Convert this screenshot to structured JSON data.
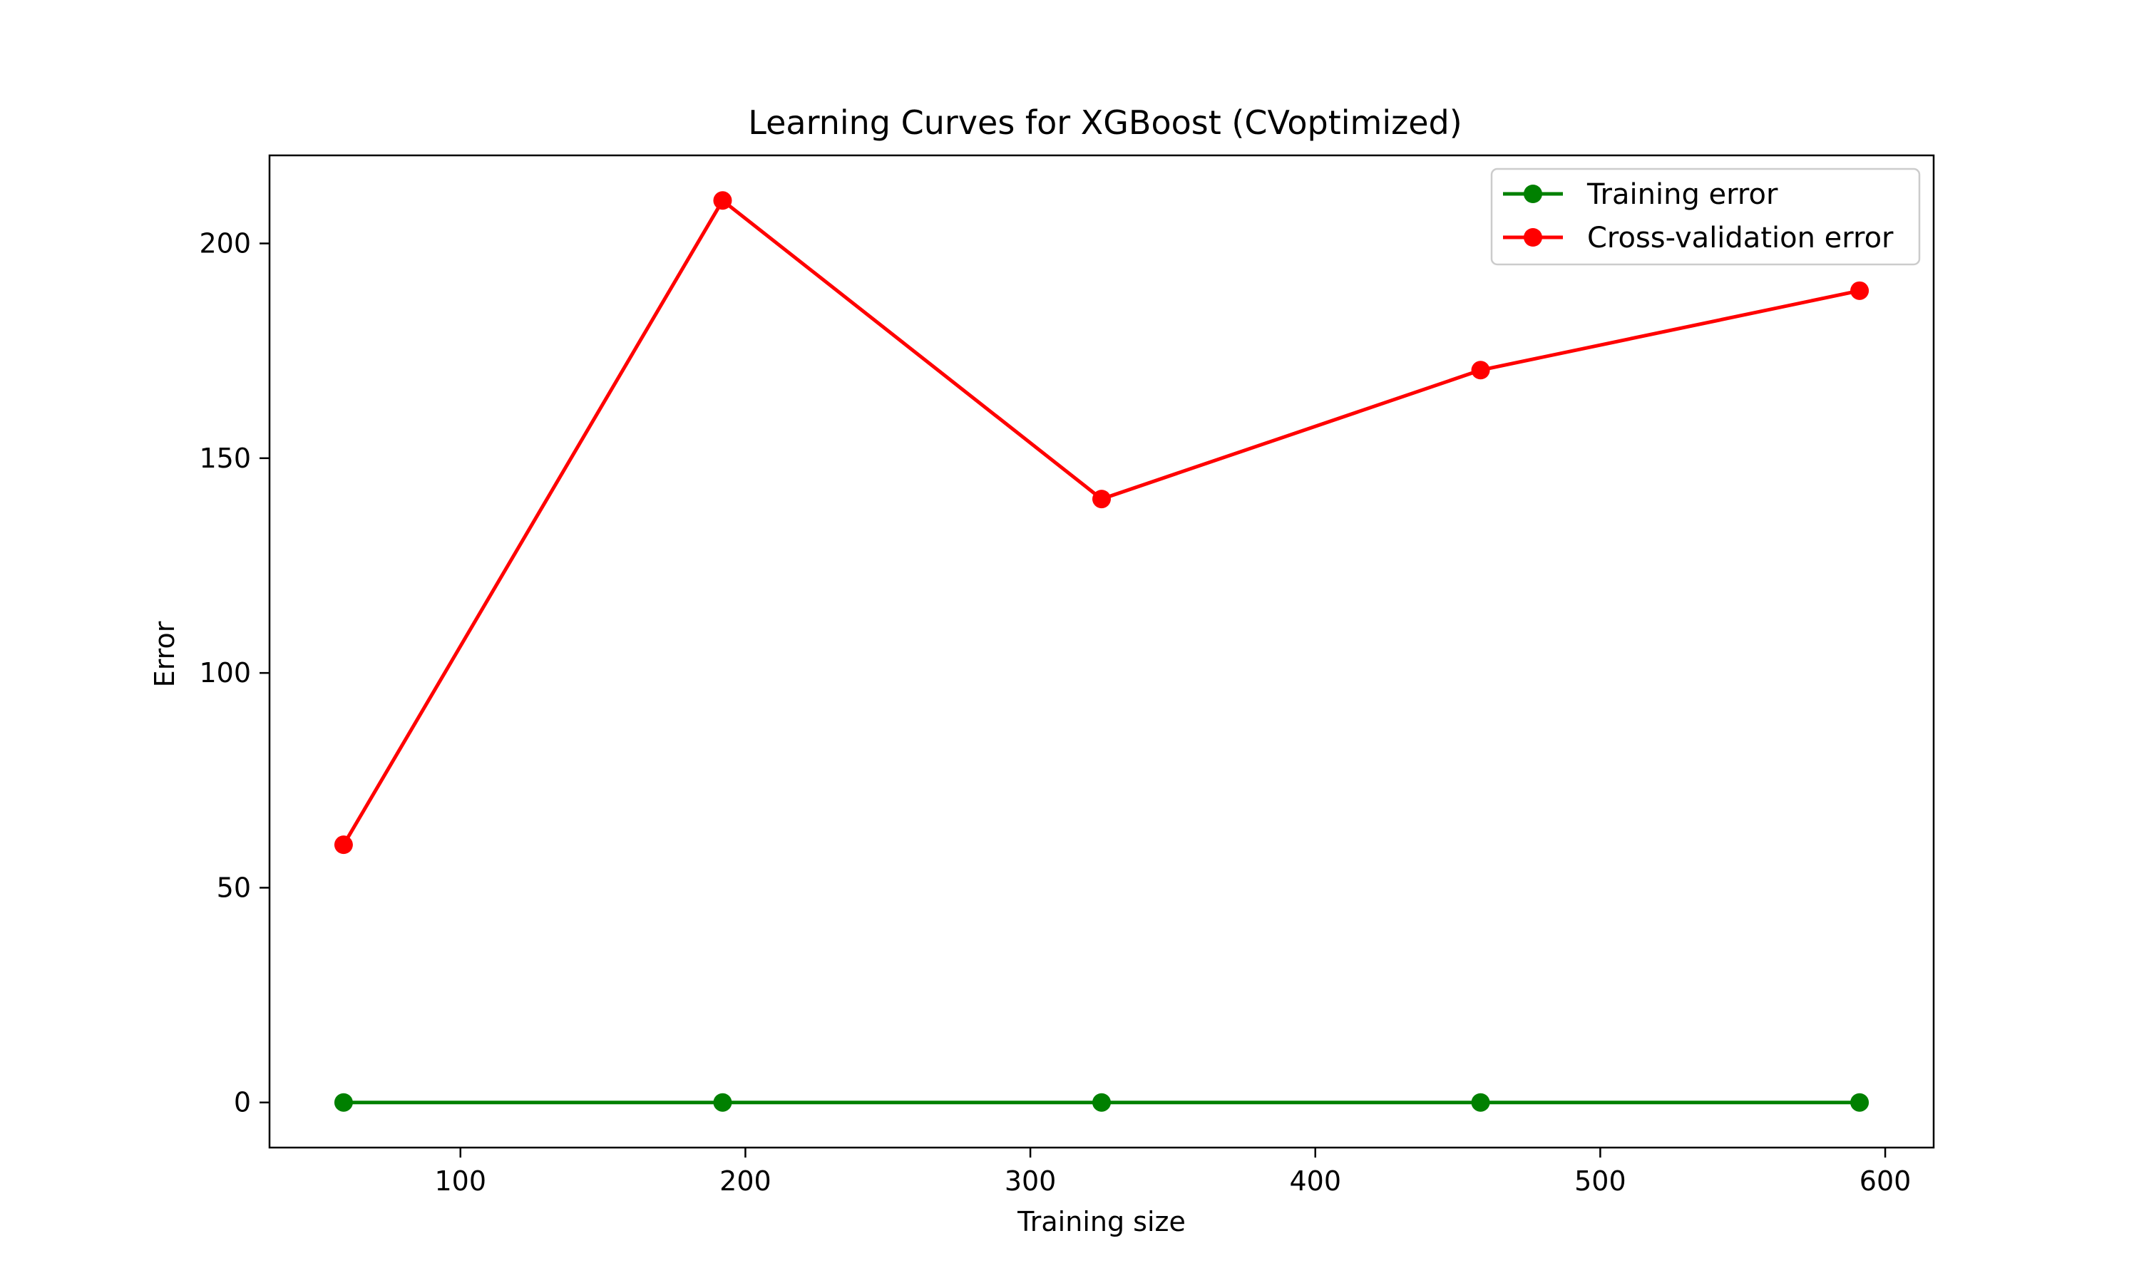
{
  "chart_data": {
    "type": "line",
    "title": "Learning Curves for XGBoost (CVoptimized)",
    "xlabel": "Training size",
    "ylabel": "Error",
    "xlim": [
      33,
      617
    ],
    "ylim": [
      -10.5,
      220.5
    ],
    "x_ticks": [
      100,
      200,
      300,
      400,
      500,
      600
    ],
    "y_ticks": [
      0,
      50,
      100,
      150,
      200
    ],
    "x_tick_labels": [
      "100",
      "200",
      "300",
      "400",
      "500",
      "600"
    ],
    "y_tick_labels": [
      "0",
      "50",
      "100",
      "150",
      "200"
    ],
    "grid": false,
    "legend_position": "top-right",
    "series": [
      {
        "name": "Training error",
        "color": "#008000",
        "marker": "circle",
        "x": [
          59,
          192,
          325,
          458,
          591
        ],
        "y": [
          0,
          0,
          0,
          0,
          0
        ]
      },
      {
        "name": "Cross-validation error",
        "color": "#ff0000",
        "marker": "circle",
        "x": [
          59,
          192,
          325,
          458,
          591
        ],
        "y": [
          60,
          210,
          140.5,
          170.5,
          189
        ]
      }
    ]
  }
}
